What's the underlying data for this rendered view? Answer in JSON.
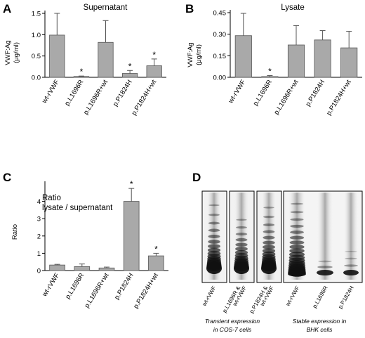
{
  "panel_labels": [
    "A",
    "B",
    "C",
    "D"
  ],
  "chart_data": [
    {
      "type": "bar",
      "panel": "A",
      "title": "Supernatant",
      "ylabel": "VWF:Ag (μg/ml)",
      "xlabel": "",
      "categories": [
        "wt-rVWF",
        "p.L1696R",
        "p.L1696R+wt",
        "p.P1824H",
        "p.P1824H+wt"
      ],
      "values": [
        0.99,
        0.02,
        0.82,
        0.09,
        0.27
      ],
      "error_upper": [
        1.5,
        0.03,
        1.33,
        0.16,
        0.43
      ],
      "significant": [
        false,
        true,
        false,
        true,
        true
      ],
      "significance_marker": "*",
      "ylim": [
        0,
        1.5
      ],
      "yticks": [
        "0.0",
        "0.5",
        "1.0",
        "1.5"
      ],
      "bar_color": "#a9a9a9",
      "grid": false
    },
    {
      "type": "bar",
      "panel": "B",
      "title": "Lysate",
      "ylabel": "VWF:Ag (μg/ml)",
      "xlabel": "",
      "categories": [
        "wt-rVWF",
        "p.L1696R",
        "p.L1696R+wt",
        "p.P1824H",
        "p.P1824H+wt"
      ],
      "values": [
        0.29,
        0.005,
        0.225,
        0.26,
        0.205
      ],
      "error_upper": [
        0.445,
        0.012,
        0.36,
        0.325,
        0.32
      ],
      "significant": [
        false,
        true,
        false,
        false,
        false
      ],
      "significance_marker": "*",
      "ylim": [
        0,
        0.45
      ],
      "yticks": [
        "0.00",
        "0.15",
        "0.30",
        "0.45"
      ],
      "bar_color": "#a9a9a9",
      "grid": false
    },
    {
      "type": "bar",
      "panel": "C",
      "title": "Ratio lysate / supernatant",
      "title_lines": [
        "Ratio",
        "lysate / supernatant"
      ],
      "ylabel": "Ratio",
      "xlabel": "",
      "categories": [
        "wt-rVWF",
        "p.L1696R",
        "p.L1696R+wt",
        "p.P1824H",
        "p.P1824H+wt"
      ],
      "values": [
        0.32,
        0.23,
        0.15,
        4.0,
        0.85
      ],
      "error_upper": [
        0.36,
        0.38,
        0.2,
        4.75,
        1.0
      ],
      "significant": [
        false,
        false,
        false,
        true,
        true
      ],
      "significance_marker": "*",
      "ylim": [
        0,
        5
      ],
      "yticks": [
        "0",
        "1",
        "2",
        "3",
        "4"
      ],
      "bar_color": "#a9a9a9",
      "grid": false
    }
  ],
  "gels": {
    "panel": "D",
    "transient": {
      "lanes": [
        "wt-rVWF",
        "p.L1696R & wt-rVWF",
        "p.P1824H & wt-rVWF"
      ],
      "lane_label_lines": [
        [
          "wt-rVWF"
        ],
        [
          "p.L1696R &",
          "wt-rVWF"
        ],
        [
          "p.P1824H &",
          "wt-rVWF"
        ]
      ],
      "caption_lines": [
        "Transient expression",
        "in COS-7 cells"
      ]
    },
    "stable": {
      "lanes": [
        "wt-rVWF",
        "p.L1696R",
        "p.P1824H"
      ],
      "lane_label_lines": [
        [
          "wt-rVWF"
        ],
        [
          "p.L1696R"
        ],
        [
          "p.P1824H"
        ]
      ],
      "caption_lines": [
        "Stable expression in",
        "BHK cells"
      ]
    }
  }
}
